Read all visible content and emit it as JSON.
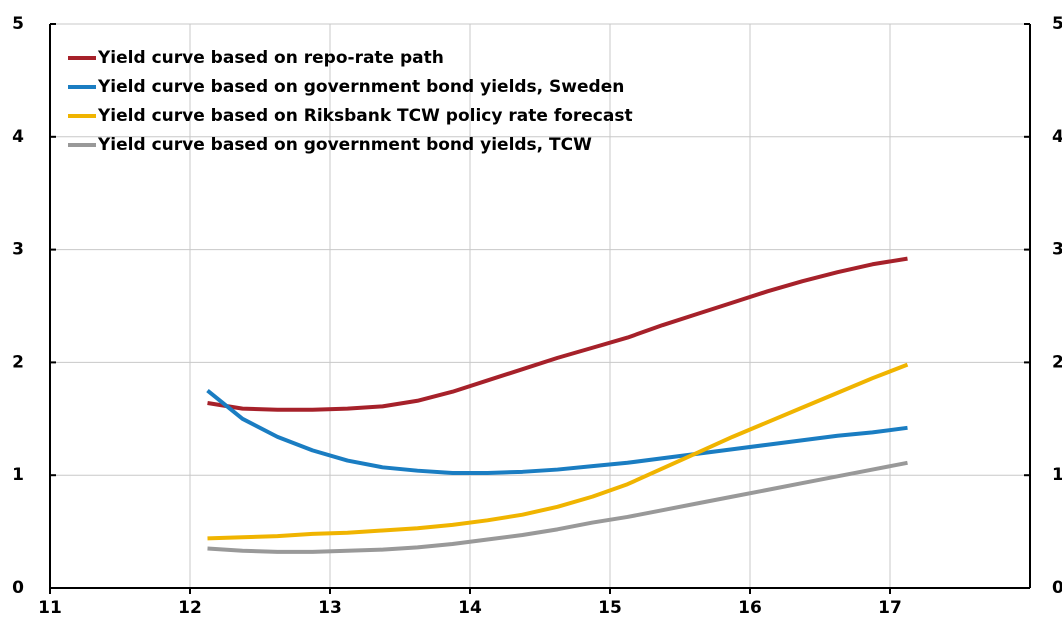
{
  "chart_data": {
    "type": "line",
    "x": [
      12.125,
      12.375,
      12.625,
      12.875,
      13.125,
      13.375,
      13.625,
      13.875,
      14.125,
      14.375,
      14.625,
      14.875,
      15.125,
      15.375,
      15.625,
      15.875,
      16.125,
      16.375,
      16.625,
      16.875,
      17.125
    ],
    "series": [
      {
        "name": "Yield curve based on repo-rate path",
        "color": "#a6212a",
        "values": [
          1.64,
          1.59,
          1.58,
          1.58,
          1.59,
          1.61,
          1.66,
          1.74,
          1.84,
          1.94,
          2.04,
          2.13,
          2.22,
          2.33,
          2.43,
          2.53,
          2.63,
          2.72,
          2.8,
          2.87,
          2.92
        ]
      },
      {
        "name": "Yield curve based on government bond yields, Sweden",
        "color": "#1a7dc2",
        "values": [
          1.75,
          1.5,
          1.34,
          1.22,
          1.13,
          1.07,
          1.04,
          1.02,
          1.02,
          1.03,
          1.05,
          1.08,
          1.11,
          1.15,
          1.19,
          1.23,
          1.27,
          1.31,
          1.35,
          1.38,
          1.42
        ]
      },
      {
        "name": "Yield curve based on Riksbank TCW policy rate forecast",
        "color": "#f0b400",
        "values": [
          0.44,
          0.45,
          0.46,
          0.48,
          0.49,
          0.51,
          0.53,
          0.56,
          0.6,
          0.65,
          0.72,
          0.81,
          0.92,
          1.06,
          1.2,
          1.34,
          1.47,
          1.6,
          1.73,
          1.86,
          1.98
        ]
      },
      {
        "name": "Yield curve based on government bond yields, TCW",
        "color": "#999999",
        "values": [
          0.35,
          0.33,
          0.32,
          0.32,
          0.33,
          0.34,
          0.36,
          0.39,
          0.43,
          0.47,
          0.52,
          0.58,
          0.63,
          0.69,
          0.75,
          0.81,
          0.87,
          0.93,
          0.99,
          1.05,
          1.11
        ]
      }
    ],
    "xlim": [
      11,
      18
    ],
    "xticks": [
      11,
      12,
      13,
      14,
      15,
      16,
      17
    ],
    "ylim": [
      0,
      5
    ],
    "yticks": [
      0,
      1,
      2,
      3,
      4,
      5
    ],
    "y2lim": [
      0,
      5
    ],
    "y2ticks": [
      0,
      1,
      2,
      3,
      4,
      5
    ],
    "grid": true,
    "legend": "top-left"
  }
}
